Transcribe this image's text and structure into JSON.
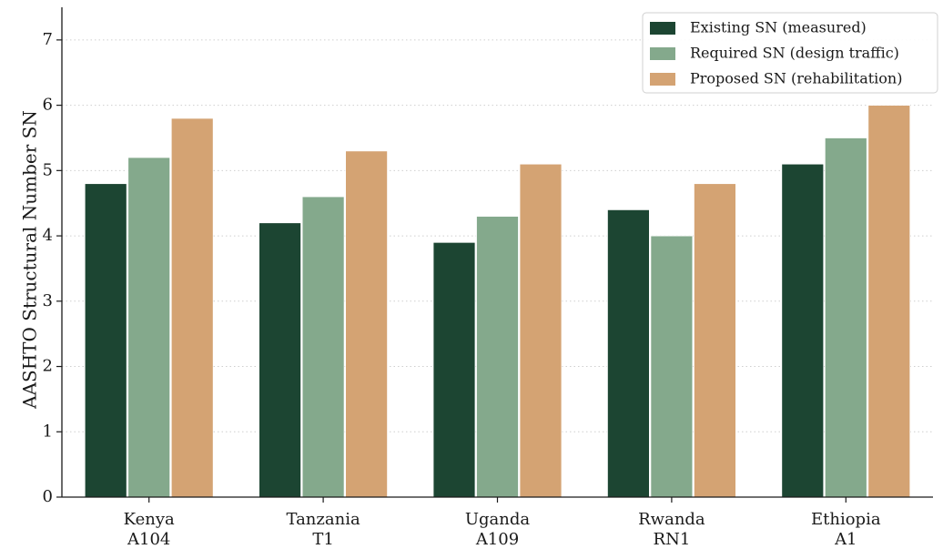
{
  "chart_data": {
    "type": "bar",
    "title": "",
    "xlabel": "",
    "ylabel": "AASHTO Structural Number SN",
    "categories": [
      [
        "Kenya",
        "A104"
      ],
      [
        "Tanzania",
        "T1"
      ],
      [
        "Uganda",
        "A109"
      ],
      [
        "Rwanda",
        "RN1"
      ],
      [
        "Ethiopia",
        "A1"
      ]
    ],
    "series": [
      {
        "name": "Existing SN (measured)",
        "color": "#1c4532",
        "values": [
          4.8,
          4.2,
          3.9,
          4.4,
          5.1
        ]
      },
      {
        "name": "Required SN (design traffic)",
        "color": "#84a98c",
        "values": [
          5.2,
          4.6,
          4.3,
          4.0,
          5.5
        ]
      },
      {
        "name": "Proposed SN (rehabilitation)",
        "color": "#d4a373",
        "values": [
          5.8,
          5.3,
          5.1,
          4.8,
          6.0
        ]
      }
    ],
    "ylim": [
      0,
      7.5
    ],
    "yticks": [
      0,
      1,
      2,
      3,
      4,
      5,
      6,
      7
    ],
    "grid": "horizontal-dotted",
    "legend_position": "top-right"
  }
}
